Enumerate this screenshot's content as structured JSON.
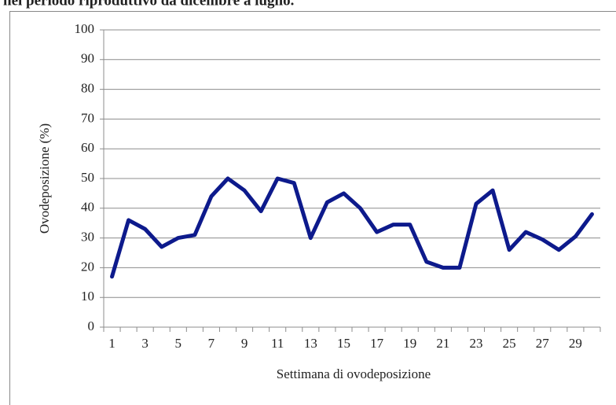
{
  "chart_data": {
    "type": "line",
    "title": "nel periodo riproduttivo da dicembre a luglio.",
    "x_label": "Settimana di ovodeposizione",
    "y_label": "Ovodeposizione (%)",
    "categories": [
      "1",
      null,
      "3",
      null,
      "5",
      null,
      "7",
      null,
      "9",
      null,
      "11",
      null,
      "13",
      null,
      "15",
      null,
      "17",
      null,
      "19",
      null,
      "21",
      null,
      "23",
      null,
      "25",
      null,
      "27",
      null,
      "29",
      null
    ],
    "series": [
      {
        "name": "Ovodeposizione",
        "color": "#0d1a8c",
        "values": [
          17,
          36,
          33,
          27,
          30,
          31,
          44,
          50,
          46,
          39,
          50,
          48.5,
          30,
          42,
          45,
          40,
          32,
          34.5,
          34.5,
          22,
          20,
          20,
          41.5,
          46,
          26,
          32,
          29.5,
          26,
          30.5,
          38
        ]
      }
    ],
    "ylim": [
      0,
      100
    ],
    "yticks": [
      0,
      10,
      20,
      30,
      40,
      50,
      60,
      70,
      80,
      90,
      100
    ],
    "grid": true
  }
}
